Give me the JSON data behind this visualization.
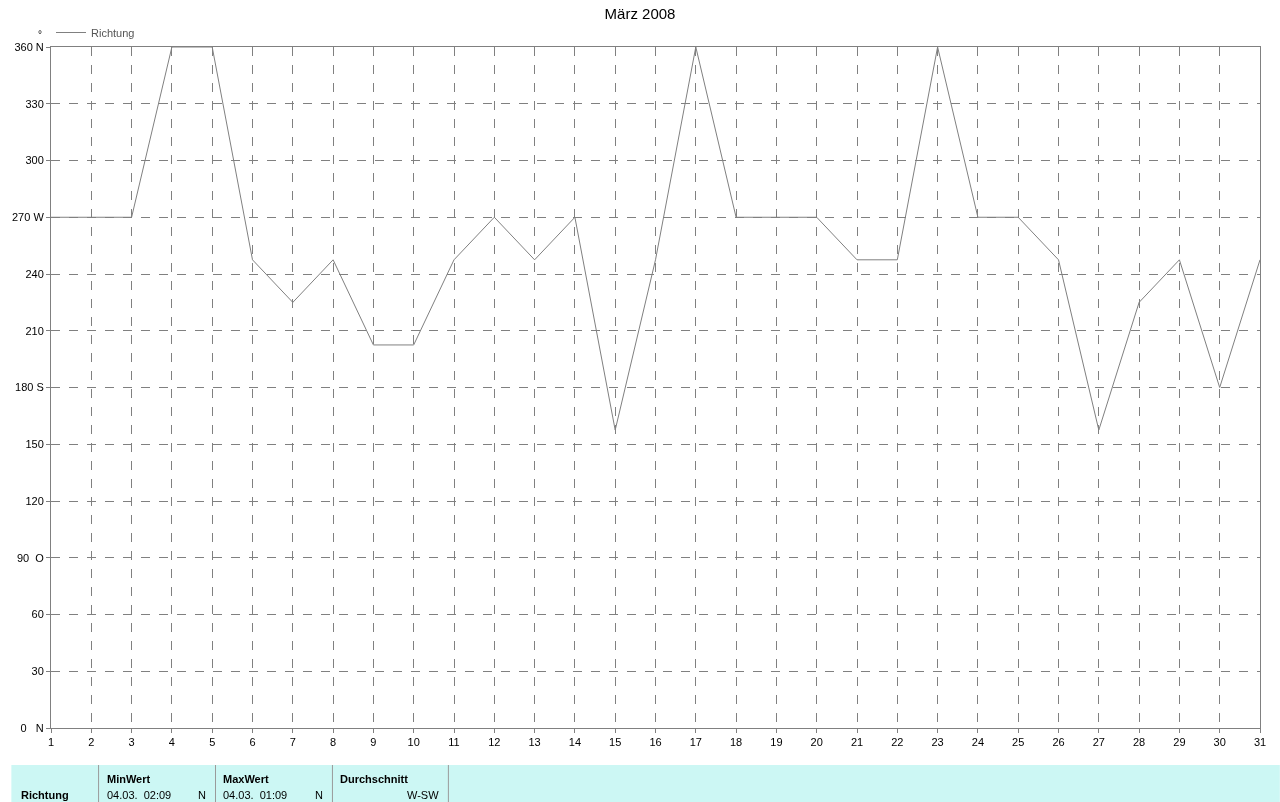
{
  "chart_data": {
    "type": "line",
    "title": "März 2008",
    "ylabel": "°",
    "x": [
      1,
      2,
      3,
      4,
      5,
      6,
      7,
      8,
      9,
      10,
      11,
      12,
      13,
      14,
      15,
      16,
      17,
      18,
      19,
      20,
      21,
      22,
      23,
      24,
      25,
      26,
      27,
      28,
      29,
      30,
      31
    ],
    "series": [
      {
        "name": "Richtung",
        "color": "#808080",
        "values": [
          270,
          270,
          270,
          360,
          360,
          247.5,
          225,
          247.5,
          202.5,
          202.5,
          247.5,
          270,
          247.5,
          270,
          157.5,
          247.5,
          360,
          270,
          270,
          270,
          247.5,
          247.5,
          360,
          270,
          270,
          247.5,
          157.5,
          225,
          247.5,
          180,
          247.5
        ]
      }
    ],
    "xlim": [
      1,
      31
    ],
    "xticks": [
      1,
      2,
      3,
      4,
      5,
      6,
      7,
      8,
      9,
      10,
      11,
      12,
      13,
      14,
      15,
      16,
      17,
      18,
      19,
      20,
      21,
      22,
      23,
      24,
      25,
      26,
      27,
      28,
      29,
      30,
      31
    ],
    "ylim": [
      0,
      360
    ],
    "yticks": [
      {
        "value": 0,
        "label": "0   N"
      },
      30,
      60,
      {
        "value": 90,
        "label": "90  O"
      },
      120,
      150,
      {
        "value": 180,
        "label": "180 S"
      },
      210,
      240,
      {
        "value": 270,
        "label": "270 W"
      },
      300,
      330,
      {
        "value": 360,
        "label": "360 N"
      }
    ],
    "grid": true,
    "legend": "top left",
    "marker": "none",
    "line_style": "solid",
    "annotations": [
      "Richtung",
      "MinWert",
      "04.03.  02:09",
      "N",
      "MaxWert",
      "04.03.  01:09",
      "N",
      "Durchschnitt",
      "W-SW"
    ]
  }
}
